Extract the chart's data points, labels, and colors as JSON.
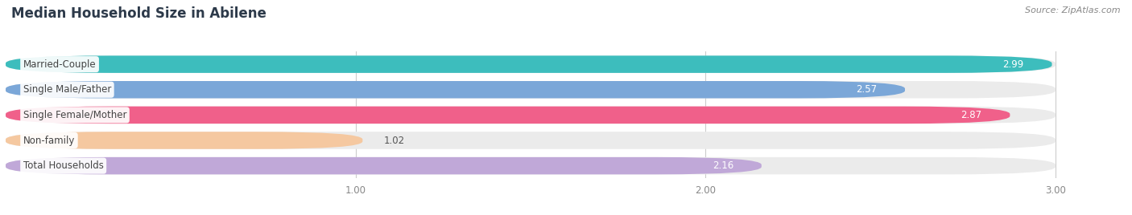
{
  "title": "Median Household Size in Abilene",
  "source": "Source: ZipAtlas.com",
  "categories": [
    "Married-Couple",
    "Single Male/Father",
    "Single Female/Mother",
    "Non-family",
    "Total Households"
  ],
  "values": [
    2.99,
    2.57,
    2.87,
    1.02,
    2.16
  ],
  "bar_colors": [
    "#3dbdbd",
    "#7ba7d8",
    "#f0608a",
    "#f5c8a0",
    "#c0a8d8"
  ],
  "bar_bg_colors": [
    "#ebebeb",
    "#ebebeb",
    "#ebebeb",
    "#ebebeb",
    "#ebebeb"
  ],
  "xlim": [
    0,
    3.18
  ],
  "data_max": 3.0,
  "xticks": [
    1.0,
    2.0,
    3.0
  ],
  "label_fontsize": 8.5,
  "value_fontsize": 8.5,
  "title_fontsize": 12,
  "source_fontsize": 8,
  "background_color": "#ffffff"
}
